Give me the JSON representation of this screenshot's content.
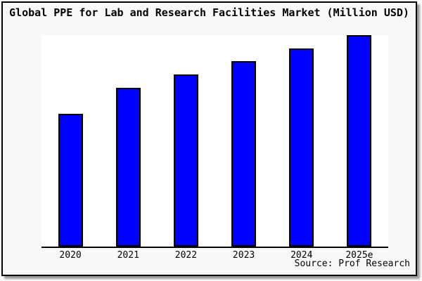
{
  "title": "Global PPE for Lab and Research Facilities Market (Million USD)",
  "source": "Source: Prof Research",
  "colors": {
    "bar_fill": "#0000ff",
    "bar_border": "#000000",
    "background": "#f8f8f8",
    "plot_background": "#ffffff",
    "axis": "#000000",
    "text": "#000000"
  },
  "chart_data": {
    "type": "bar",
    "title": "Global PPE for Lab and Research Facilities Market (Million USD)",
    "categories": [
      "2020",
      "2021",
      "2022",
      "2023",
      "2024",
      "2025e"
    ],
    "values": [
      62.8,
      75.1,
      81.4,
      87.7,
      93.7,
      100
    ],
    "values_note": "y-axis has no tick labels or gridlines; values are bar heights as percent of the tallest (2025e) bar",
    "xlabel": "",
    "ylabel": "",
    "ylim": [
      0,
      100
    ],
    "grid": false,
    "legend": false,
    "source": "Source: Prof Research"
  }
}
